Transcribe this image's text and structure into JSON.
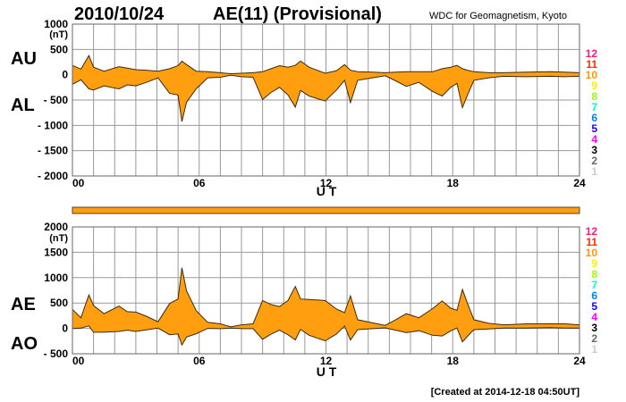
{
  "header": {
    "date": "2010/10/24",
    "title": "AE(11) (Provisional)",
    "source": "WDC for Geomagnetism, Kyoto",
    "created": "[Created at 2014-12-18 04:50UT]"
  },
  "legend_numbers": [
    {
      "label": "12",
      "color": "#ff1a75"
    },
    {
      "label": "11",
      "color": "#ff2a00"
    },
    {
      "label": "10",
      "color": "#ff9900"
    },
    {
      "label": "9",
      "color": "#ffee00"
    },
    {
      "label": "8",
      "color": "#99ff00"
    },
    {
      "label": "7",
      "color": "#00ffcc"
    },
    {
      "label": "6",
      "color": "#0080ff"
    },
    {
      "label": "5",
      "color": "#1a00ff"
    },
    {
      "label": "4",
      "color": "#ff00ff"
    },
    {
      "label": "3",
      "color": "#000000"
    },
    {
      "label": "2",
      "color": "#666666"
    },
    {
      "label": "1",
      "color": "#cccccc"
    }
  ],
  "colors": {
    "fill": "#ff9f10",
    "line": "#3a2a10",
    "grid": "#999999"
  },
  "chart_data": [
    {
      "type": "area",
      "name": "AU/AL",
      "series_labels": [
        "AU",
        "AL"
      ],
      "xlabel": "U T",
      "unit": "(nT)",
      "xlim": [
        0,
        24
      ],
      "ylim": [
        -2000,
        1000
      ],
      "xticks": [
        "00",
        "06",
        "12",
        "18",
        "24"
      ],
      "yticks": [
        {
          "v": 1000,
          "t": "1000"
        },
        {
          "v": 500,
          "t": "500"
        },
        {
          "v": 0,
          "t": "0"
        },
        {
          "v": -500,
          "t": "- 500"
        },
        {
          "v": -1000,
          "t": "- 1000"
        },
        {
          "v": -1500,
          "t": "- 1500"
        },
        {
          "v": -2000,
          "t": "- 2000"
        }
      ],
      "grid": true
    },
    {
      "type": "area",
      "name": "AE/AO",
      "series_labels": [
        "AE",
        "AO"
      ],
      "xlabel": "U T",
      "unit": "(nT)",
      "xlim": [
        0,
        24
      ],
      "ylim": [
        -500,
        2000
      ],
      "xticks": [
        "00",
        "06",
        "12",
        "18",
        "24"
      ],
      "yticks": [
        {
          "v": 2000,
          "t": "2000"
        },
        {
          "v": 1500,
          "t": "1500"
        },
        {
          "v": 1000,
          "t": "1000"
        },
        {
          "v": 500,
          "t": "500"
        },
        {
          "v": 0,
          "t": "0"
        },
        {
          "v": -500,
          "t": "- 500"
        }
      ],
      "grid": true
    }
  ],
  "series": {
    "hours": [
      0,
      0.4,
      0.78,
      1.0,
      1.5,
      2.2,
      2.6,
      3.0,
      3.5,
      4.05,
      4.6,
      5.0,
      5.18,
      5.4,
      5.86,
      6.4,
      7.0,
      7.5,
      8.0,
      8.55,
      9.0,
      9.4,
      9.8,
      10.2,
      10.55,
      10.8,
      11.2,
      11.96,
      12.5,
      12.88,
      13.16,
      13.5,
      14.2,
      14.8,
      15.3,
      15.8,
      16.4,
      17.05,
      17.5,
      17.9,
      18.2,
      18.46,
      18.7,
      19.0,
      19.7,
      20.4,
      21.5,
      22.6,
      23.3,
      24
    ],
    "AU": [
      185,
      110,
      380,
      150,
      70,
      160,
      130,
      100,
      90,
      70,
      120,
      180,
      270,
      200,
      70,
      60,
      40,
      20,
      30,
      40,
      60,
      120,
      180,
      150,
      185,
      270,
      150,
      30,
      80,
      200,
      90,
      60,
      50,
      40,
      50,
      60,
      60,
      60,
      120,
      150,
      185,
      120,
      90,
      60,
      40,
      40,
      50,
      60,
      50,
      40
    ],
    "AL": [
      -190,
      -100,
      -280,
      -300,
      -220,
      -280,
      -200,
      -220,
      -150,
      -60,
      -370,
      -400,
      -925,
      -540,
      -280,
      -60,
      -50,
      -10,
      -40,
      -50,
      -490,
      -350,
      -250,
      -400,
      -640,
      -310,
      -420,
      -520,
      -300,
      -110,
      -550,
      -110,
      -60,
      -20,
      -120,
      -230,
      -150,
      -330,
      -420,
      -250,
      -170,
      -650,
      -400,
      -110,
      -60,
      -30,
      -40,
      -30,
      -40,
      -30
    ]
  }
}
